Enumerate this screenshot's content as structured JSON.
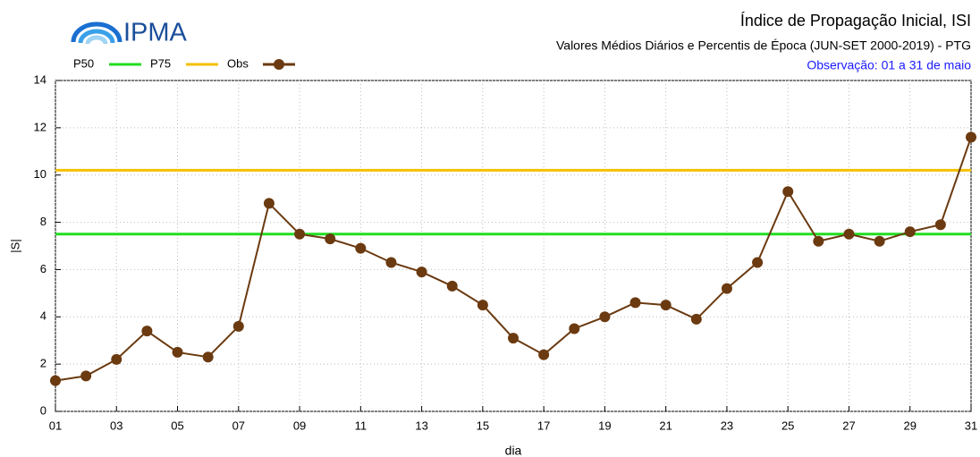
{
  "chart_data": {
    "type": "line",
    "logo_text": "IPMA",
    "title": "Índice de Propagação Inicial, ISI",
    "subtitle": "Valores Médios Diários e Percentis de Época (JUN-SET 2000-2019) - PTG",
    "annotation": "Observação: 01 a 31 de maio",
    "x_label": "dia",
    "y_label": "|S|",
    "x": [
      1,
      2,
      3,
      4,
      5,
      6,
      7,
      8,
      9,
      10,
      11,
      12,
      13,
      14,
      15,
      16,
      17,
      18,
      19,
      20,
      21,
      22,
      23,
      24,
      25,
      26,
      27,
      28,
      29,
      30,
      31
    ],
    "series": [
      {
        "name": "P50",
        "color": "#22dd22",
        "marker": false,
        "values": [
          7.5,
          7.5,
          7.5,
          7.5,
          7.5,
          7.5,
          7.5,
          7.5,
          7.5,
          7.5,
          7.5,
          7.5,
          7.5,
          7.5,
          7.5,
          7.5,
          7.5,
          7.5,
          7.5,
          7.5,
          7.5,
          7.5,
          7.5,
          7.5,
          7.5,
          7.5,
          7.5,
          7.5,
          7.5,
          7.5,
          7.5
        ]
      },
      {
        "name": "P75",
        "color": "#f5c000",
        "marker": false,
        "values": [
          10.2,
          10.2,
          10.2,
          10.2,
          10.2,
          10.2,
          10.2,
          10.2,
          10.2,
          10.2,
          10.2,
          10.2,
          10.2,
          10.2,
          10.2,
          10.2,
          10.2,
          10.2,
          10.2,
          10.2,
          10.2,
          10.2,
          10.2,
          10.2,
          10.2,
          10.2,
          10.2,
          10.2,
          10.2,
          10.2,
          10.2
        ]
      },
      {
        "name": "Obs",
        "color": "#6b3a10",
        "marker": true,
        "values": [
          1.3,
          1.5,
          2.2,
          3.4,
          2.5,
          2.3,
          3.6,
          8.8,
          7.5,
          7.3,
          6.9,
          6.3,
          5.9,
          5.3,
          4.5,
          3.1,
          2.4,
          3.5,
          4.0,
          4.6,
          4.5,
          3.9,
          5.2,
          6.3,
          9.3,
          7.2,
          7.5,
          7.2,
          7.6,
          7.9,
          11.6
        ]
      }
    ],
    "xlim": [
      1,
      31
    ],
    "xticks": [
      {
        "value": 1,
        "label": "01"
      },
      {
        "value": 3,
        "label": "03"
      },
      {
        "value": 5,
        "label": "05"
      },
      {
        "value": 7,
        "label": "07"
      },
      {
        "value": 9,
        "label": "09"
      },
      11,
      13,
      15,
      17,
      19,
      21,
      23,
      25,
      27,
      29,
      31
    ],
    "ylim": [
      0,
      14
    ],
    "yticks": [
      0,
      2,
      4,
      6,
      8,
      10,
      12,
      14
    ],
    "grid": true
  }
}
